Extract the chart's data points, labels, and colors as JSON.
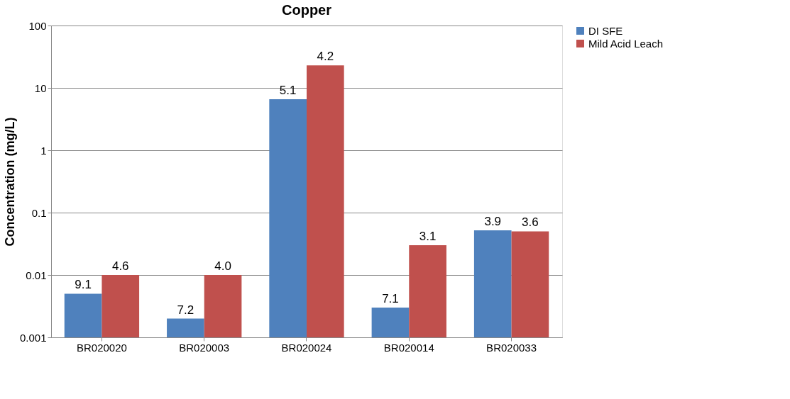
{
  "chart_data": {
    "type": "bar",
    "title": "Copper",
    "ylabel": "Concentration (mg/L)",
    "categories": [
      "BR020020",
      "BR020003",
      "BR020024",
      "BR020014",
      "BR020033"
    ],
    "series": [
      {
        "name": "DI SFE",
        "color": "#4f81bd",
        "values": [
          0.005,
          0.002,
          6.6,
          0.003,
          0.052
        ]
      },
      {
        "name": "Mild Acid Leach",
        "color": "#c0504d",
        "values": [
          0.01,
          0.01,
          23,
          0.03,
          0.05
        ]
      }
    ],
    "annotations": [
      {
        "text": "9.1",
        "x": "BR020020",
        "y": 0.005
      },
      {
        "text": "7.2",
        "x": "BR020003",
        "y": 0.002
      },
      {
        "text": "5.1",
        "x": "BR020024",
        "y": 6.6
      },
      {
        "text": "7.1",
        "x": "BR020014",
        "y": 0.003
      },
      {
        "text": "3.9",
        "x": "BR020033",
        "y": 0.052
      },
      {
        "text": "4.6",
        "x": "BR020020",
        "y": 0.01
      },
      {
        "text": "4.0",
        "x": "BR020003",
        "y": 0.01
      },
      {
        "text": "4.2",
        "x": "BR020024",
        "y": 23
      },
      {
        "text": "3.1",
        "x": "BR020014",
        "y": 0.03
      },
      {
        "text": "3.6",
        "x": "BR020033",
        "y": 0.05
      }
    ],
    "log": true,
    "ylim": [
      0.001,
      100
    ],
    "yticks": [
      0.001,
      0.01,
      0.1,
      1,
      10,
      100
    ],
    "grid": "y",
    "legend": "right"
  }
}
